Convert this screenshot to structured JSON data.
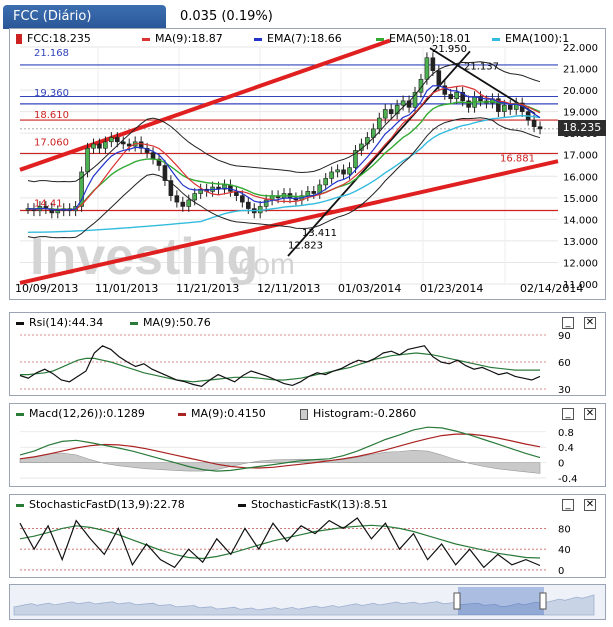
{
  "header": {
    "tab_label": "FCC (Diário)",
    "change": "0.035 (0.19%)"
  },
  "main_legend": {
    "symbol": {
      "label": "FCC:18.235",
      "color": "#cc2222"
    },
    "ma9": {
      "label": "MA(9):18.87",
      "color": "#dd3333"
    },
    "ema7": {
      "label": "EMA(7):18.66",
      "color": "#2233cc"
    },
    "ema50": {
      "label": "EMA(50):18.01",
      "color": "#33aa33"
    },
    "ema100": {
      "label": "EMA(100):1",
      "color": "#33bbdd"
    }
  },
  "current_price": "18.235",
  "annotations": {
    "high": "21.950",
    "lvl_21137": "21.137",
    "lvl_21168": "21.168",
    "lvl_19360": "19.360",
    "lvl_18610": "18.610",
    "lvl_17060": "17.060",
    "lvl_14410": "14.41",
    "low_13411": "13.411",
    "low_12823": "12.823",
    "lvl_16881": "16.881"
  },
  "watermark": {
    "main": "Investing",
    "suffix": ".com"
  },
  "x_labels": [
    "10/09/2013",
    "11/01/2013",
    "11/21/2013",
    "12/11/2013",
    "01/03/2014",
    "01/23/2014",
    "02/14/2014"
  ],
  "rsi_legend": {
    "rsi": "Rsi(14):44.34",
    "ma": "MA(9):50.76"
  },
  "macd_legend": {
    "macd": "Macd(12,26)):0.1289",
    "ma": "MA(9):0.4150",
    "hist": "Histogram:-0.2860"
  },
  "stoch_legend": {
    "d": "StochasticFastD(13,9):22.78",
    "k": "StochasticFastK(13):8.51"
  },
  "controls": {
    "minimize": "_",
    "close": "✕"
  },
  "chart_data": [
    {
      "type": "candlestick",
      "title": "FCC (Diário)",
      "x_ticks": [
        "10/09/2013",
        "11/01/2013",
        "11/21/2013",
        "12/11/2013",
        "01/03/2014",
        "01/23/2014",
        "02/14/2014"
      ],
      "ylim": [
        11,
        22
      ],
      "y_ticks": [
        11,
        12,
        13,
        14,
        15,
        16,
        17,
        18,
        19,
        20,
        21,
        22
      ],
      "y_tick_labels": [
        "11.000",
        "12.000",
        "13.000",
        "14.000",
        "15.000",
        "16.000",
        "17.000",
        "18.000",
        "19.000",
        "20.000",
        "21.000",
        "22.000"
      ],
      "close": [
        14.5,
        14.4,
        14.6,
        14.5,
        14.3,
        14.4,
        14.5,
        14.4,
        14.6,
        16.2,
        17.3,
        17.5,
        17.3,
        17.6,
        17.8,
        17.6,
        17.5,
        17.4,
        17.6,
        17.3,
        17.1,
        16.8,
        16.5,
        15.8,
        15.1,
        14.8,
        14.6,
        14.9,
        15.2,
        15.4,
        15.3,
        15.5,
        15.4,
        15.6,
        15.3,
        15.1,
        14.8,
        14.5,
        14.3,
        14.6,
        14.9,
        15.1,
        15.0,
        15.2,
        15.0,
        14.9,
        15.1,
        15.3,
        15.2,
        15.6,
        15.9,
        16.2,
        16.3,
        16.1,
        16.4,
        17.2,
        17.5,
        17.8,
        18.2,
        18.7,
        19.1,
        18.9,
        19.3,
        19.5,
        19.2,
        19.9,
        20.5,
        21.5,
        20.9,
        20.2,
        19.8,
        19.6,
        19.9,
        19.5,
        19.2,
        19.7,
        19.5,
        19.4,
        19.6,
        19.0,
        19.3,
        19.1,
        19.4,
        19.0,
        18.6,
        18.3,
        18.2
      ],
      "high": [
        21.95
      ],
      "levels": [
        21.168,
        19.36,
        18.61,
        17.06,
        14.41,
        16.881
      ],
      "series": [
        {
          "name": "MA(9)",
          "last": 18.87
        },
        {
          "name": "EMA(7)",
          "last": 18.66
        },
        {
          "name": "EMA(50)",
          "last": 18.01
        },
        {
          "name": "EMA(100)"
        }
      ]
    },
    {
      "type": "line",
      "title": "Rsi(14)",
      "y_ticks": [
        30,
        60,
        90
      ],
      "series": [
        {
          "name": "Rsi(14)",
          "last": 44.34,
          "values": [
            45,
            42,
            48,
            52,
            47,
            40,
            38,
            44,
            50,
            70,
            78,
            74,
            66,
            60,
            55,
            58,
            52,
            48,
            44,
            40,
            38,
            35,
            33,
            40,
            46,
            42,
            38,
            45,
            50,
            47,
            44,
            40,
            36,
            34,
            38,
            44,
            48,
            46,
            50,
            53,
            58,
            62,
            60,
            64,
            70,
            72,
            68,
            74,
            76,
            78,
            66,
            60,
            58,
            62,
            56,
            52,
            54,
            50,
            46,
            48,
            44,
            42,
            40,
            44
          ]
        },
        {
          "name": "MA(9)",
          "last": 50.76,
          "values": [
            46,
            46,
            47,
            48,
            50,
            54,
            58,
            62,
            64,
            64,
            62,
            60,
            57,
            54,
            51,
            48,
            46,
            44,
            42,
            40,
            39,
            38,
            39,
            40,
            41,
            42,
            43,
            43,
            43,
            42,
            41,
            40,
            40,
            41,
            42,
            44,
            46,
            48,
            50,
            52,
            54,
            57,
            60,
            63,
            65,
            67,
            68,
            69,
            70,
            69,
            68,
            66,
            64,
            62,
            60,
            58,
            56,
            54,
            53,
            52,
            51,
            51,
            51,
            51
          ]
        }
      ]
    },
    {
      "type": "line",
      "title": "Macd(12,26)",
      "y_ticks": [
        -0.4,
        0,
        0.4,
        0.8
      ],
      "y_tick_labels": [
        "-0.4",
        "0",
        "0.4",
        "0.8"
      ],
      "series": [
        {
          "name": "Macd(12,26))",
          "last": 0.1289,
          "values": [
            0.2,
            0.3,
            0.45,
            0.55,
            0.58,
            0.52,
            0.45,
            0.38,
            0.3,
            0.2,
            0.1,
            0.0,
            -0.1,
            -0.18,
            -0.22,
            -0.2,
            -0.15,
            -0.1,
            -0.05,
            0.0,
            0.05,
            0.08,
            0.1,
            0.18,
            0.3,
            0.45,
            0.6,
            0.72,
            0.85,
            0.92,
            0.9,
            0.82,
            0.72,
            0.6,
            0.48,
            0.36,
            0.24,
            0.13
          ]
        },
        {
          "name": "MA(9)",
          "last": 0.415,
          "values": [
            0.1,
            0.15,
            0.22,
            0.3,
            0.38,
            0.44,
            0.47,
            0.46,
            0.42,
            0.36,
            0.28,
            0.2,
            0.12,
            0.04,
            -0.04,
            -0.1,
            -0.13,
            -0.14,
            -0.12,
            -0.08,
            -0.04,
            0.0,
            0.05,
            0.1,
            0.16,
            0.24,
            0.33,
            0.43,
            0.53,
            0.62,
            0.7,
            0.74,
            0.74,
            0.7,
            0.64,
            0.56,
            0.48,
            0.41
          ]
        },
        {
          "name": "Histogram",
          "last": -0.286
        }
      ]
    },
    {
      "type": "line",
      "title": "Stochastic",
      "y_ticks": [
        0,
        40,
        80
      ],
      "series": [
        {
          "name": "StochasticFastD(13,9)",
          "last": 22.78,
          "values": [
            60,
            65,
            72,
            80,
            85,
            82,
            76,
            68,
            58,
            48,
            38,
            30,
            24,
            22,
            26,
            32,
            40,
            48,
            56,
            62,
            68,
            74,
            78,
            82,
            84,
            86,
            84,
            80,
            74,
            66,
            58,
            50,
            44,
            38,
            32,
            28,
            24,
            23
          ]
        },
        {
          "name": "StochasticFastK(13)",
          "last": 8.51,
          "values": [
            90,
            40,
            85,
            20,
            95,
            60,
            30,
            80,
            10,
            50,
            20,
            5,
            40,
            15,
            60,
            30,
            80,
            40,
            90,
            55,
            85,
            70,
            95,
            80,
            100,
            60,
            90,
            40,
            70,
            20,
            50,
            10,
            40,
            5,
            30,
            10,
            20,
            8.5
          ]
        }
      ]
    }
  ]
}
